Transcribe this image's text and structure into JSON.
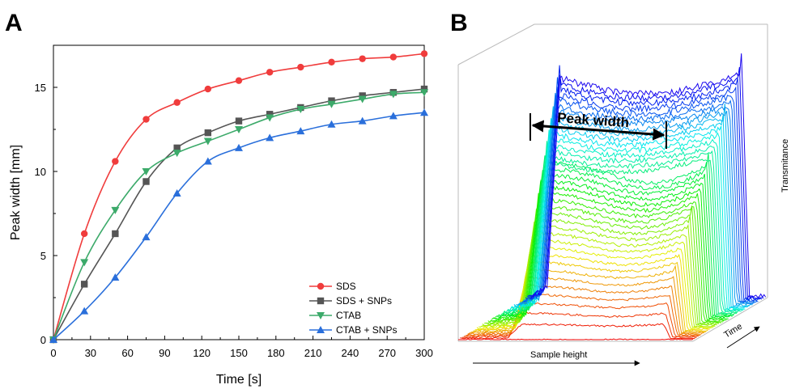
{
  "panel_a": {
    "letter": "A",
    "chart_data": {
      "type": "line",
      "xlabel": "Time [s]",
      "ylabel": "Peak width [mm]",
      "xlim": [
        0,
        300
      ],
      "ylim": [
        0,
        17.5
      ],
      "xticks": [
        "0",
        "30",
        "60",
        "90",
        "120",
        "150",
        "180",
        "210",
        "240",
        "270",
        "300"
      ],
      "yticks": [
        "0",
        "5",
        "10",
        "15"
      ],
      "x": [
        0,
        25,
        50,
        75,
        100,
        125,
        150,
        175,
        200,
        225,
        250,
        275,
        300
      ],
      "series": [
        {
          "name": "SDS",
          "color": "#f03c3c",
          "marker": "circle",
          "values": [
            0,
            6.3,
            10.6,
            13.1,
            14.1,
            14.9,
            15.4,
            15.9,
            16.2,
            16.5,
            16.7,
            16.8,
            17.0
          ]
        },
        {
          "name": "SDS + SNPs",
          "color": "#555555",
          "marker": "square",
          "values": [
            0,
            3.3,
            6.3,
            9.4,
            11.4,
            12.3,
            13.0,
            13.4,
            13.8,
            14.2,
            14.5,
            14.7,
            14.9
          ]
        },
        {
          "name": "CTAB",
          "color": "#3caa6a",
          "marker": "triangle-down",
          "values": [
            0,
            4.6,
            7.7,
            10.0,
            11.1,
            11.8,
            12.5,
            13.2,
            13.7,
            14.0,
            14.3,
            14.6,
            14.7
          ]
        },
        {
          "name": "CTAB + SNPs",
          "color": "#2a6fdb",
          "marker": "triangle-up",
          "values": [
            0,
            1.7,
            3.7,
            6.1,
            8.7,
            10.6,
            11.4,
            12.0,
            12.4,
            12.8,
            13.0,
            13.3,
            13.5
          ]
        }
      ],
      "legend_position": "bottom-right"
    }
  },
  "panel_b": {
    "letter": "B",
    "peak_width_label": "Peak width",
    "sample_height_label": "Sample height",
    "time_label": "Time",
    "transmittance_label": "Transmitance",
    "line_count": 40,
    "palette": "rainbow red-to-blue over time"
  }
}
